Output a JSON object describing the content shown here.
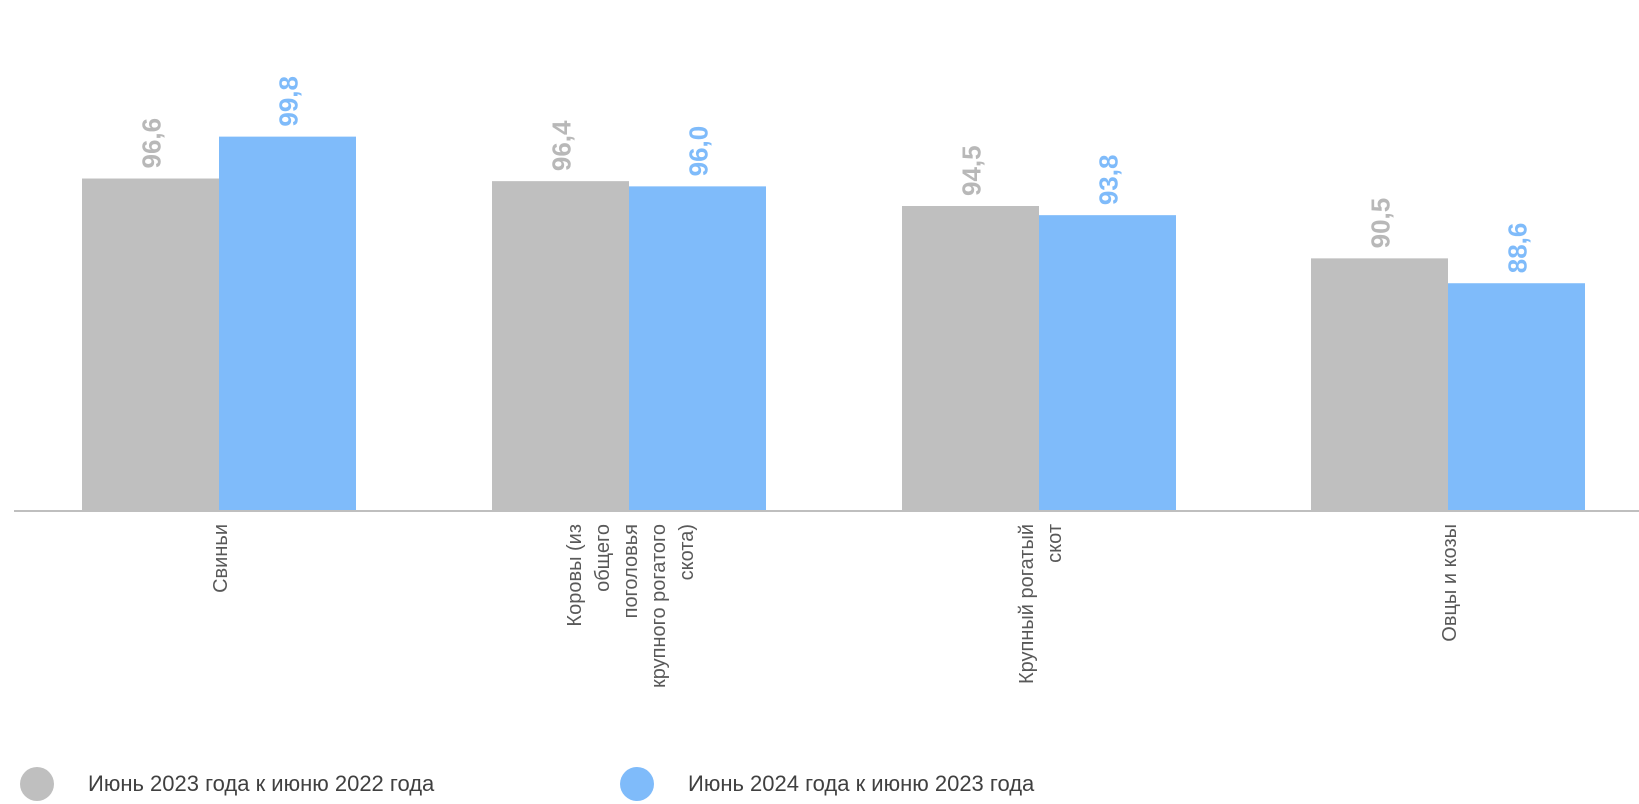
{
  "chart_data": {
    "type": "bar",
    "categories": [
      [
        "Свиньи"
      ],
      [
        "Коровы (из",
        "общего",
        "поголовья",
        "крупного рогатого",
        "скота)"
      ],
      [
        "Крупный рогатый",
        "скот"
      ],
      [
        "Овцы и козы"
      ]
    ],
    "series": [
      {
        "name": "Июнь 2023 года  к июню 2022 года",
        "values": [
          96.6,
          96.4,
          94.5,
          90.5
        ],
        "labels": [
          "96,6",
          "96,4",
          "94,5",
          "90,5"
        ],
        "color": "#bfbfbf"
      },
      {
        "name": "Июнь 2024 года к июню 2023 года",
        "values": [
          99.8,
          96.0,
          93.8,
          88.6
        ],
        "labels": [
          "99,8",
          "96,0",
          "93,8",
          "88,6"
        ],
        "color": "#7fbbfa"
      }
    ],
    "ylim": [
      71.2,
      100
    ],
    "grid": false,
    "legend_position": "bottom"
  },
  "colors": {
    "label_grey": "#b8b8b8",
    "label_blue": "#7fbbfa",
    "axis": "#bfbfbf",
    "category_text": "#595959"
  }
}
